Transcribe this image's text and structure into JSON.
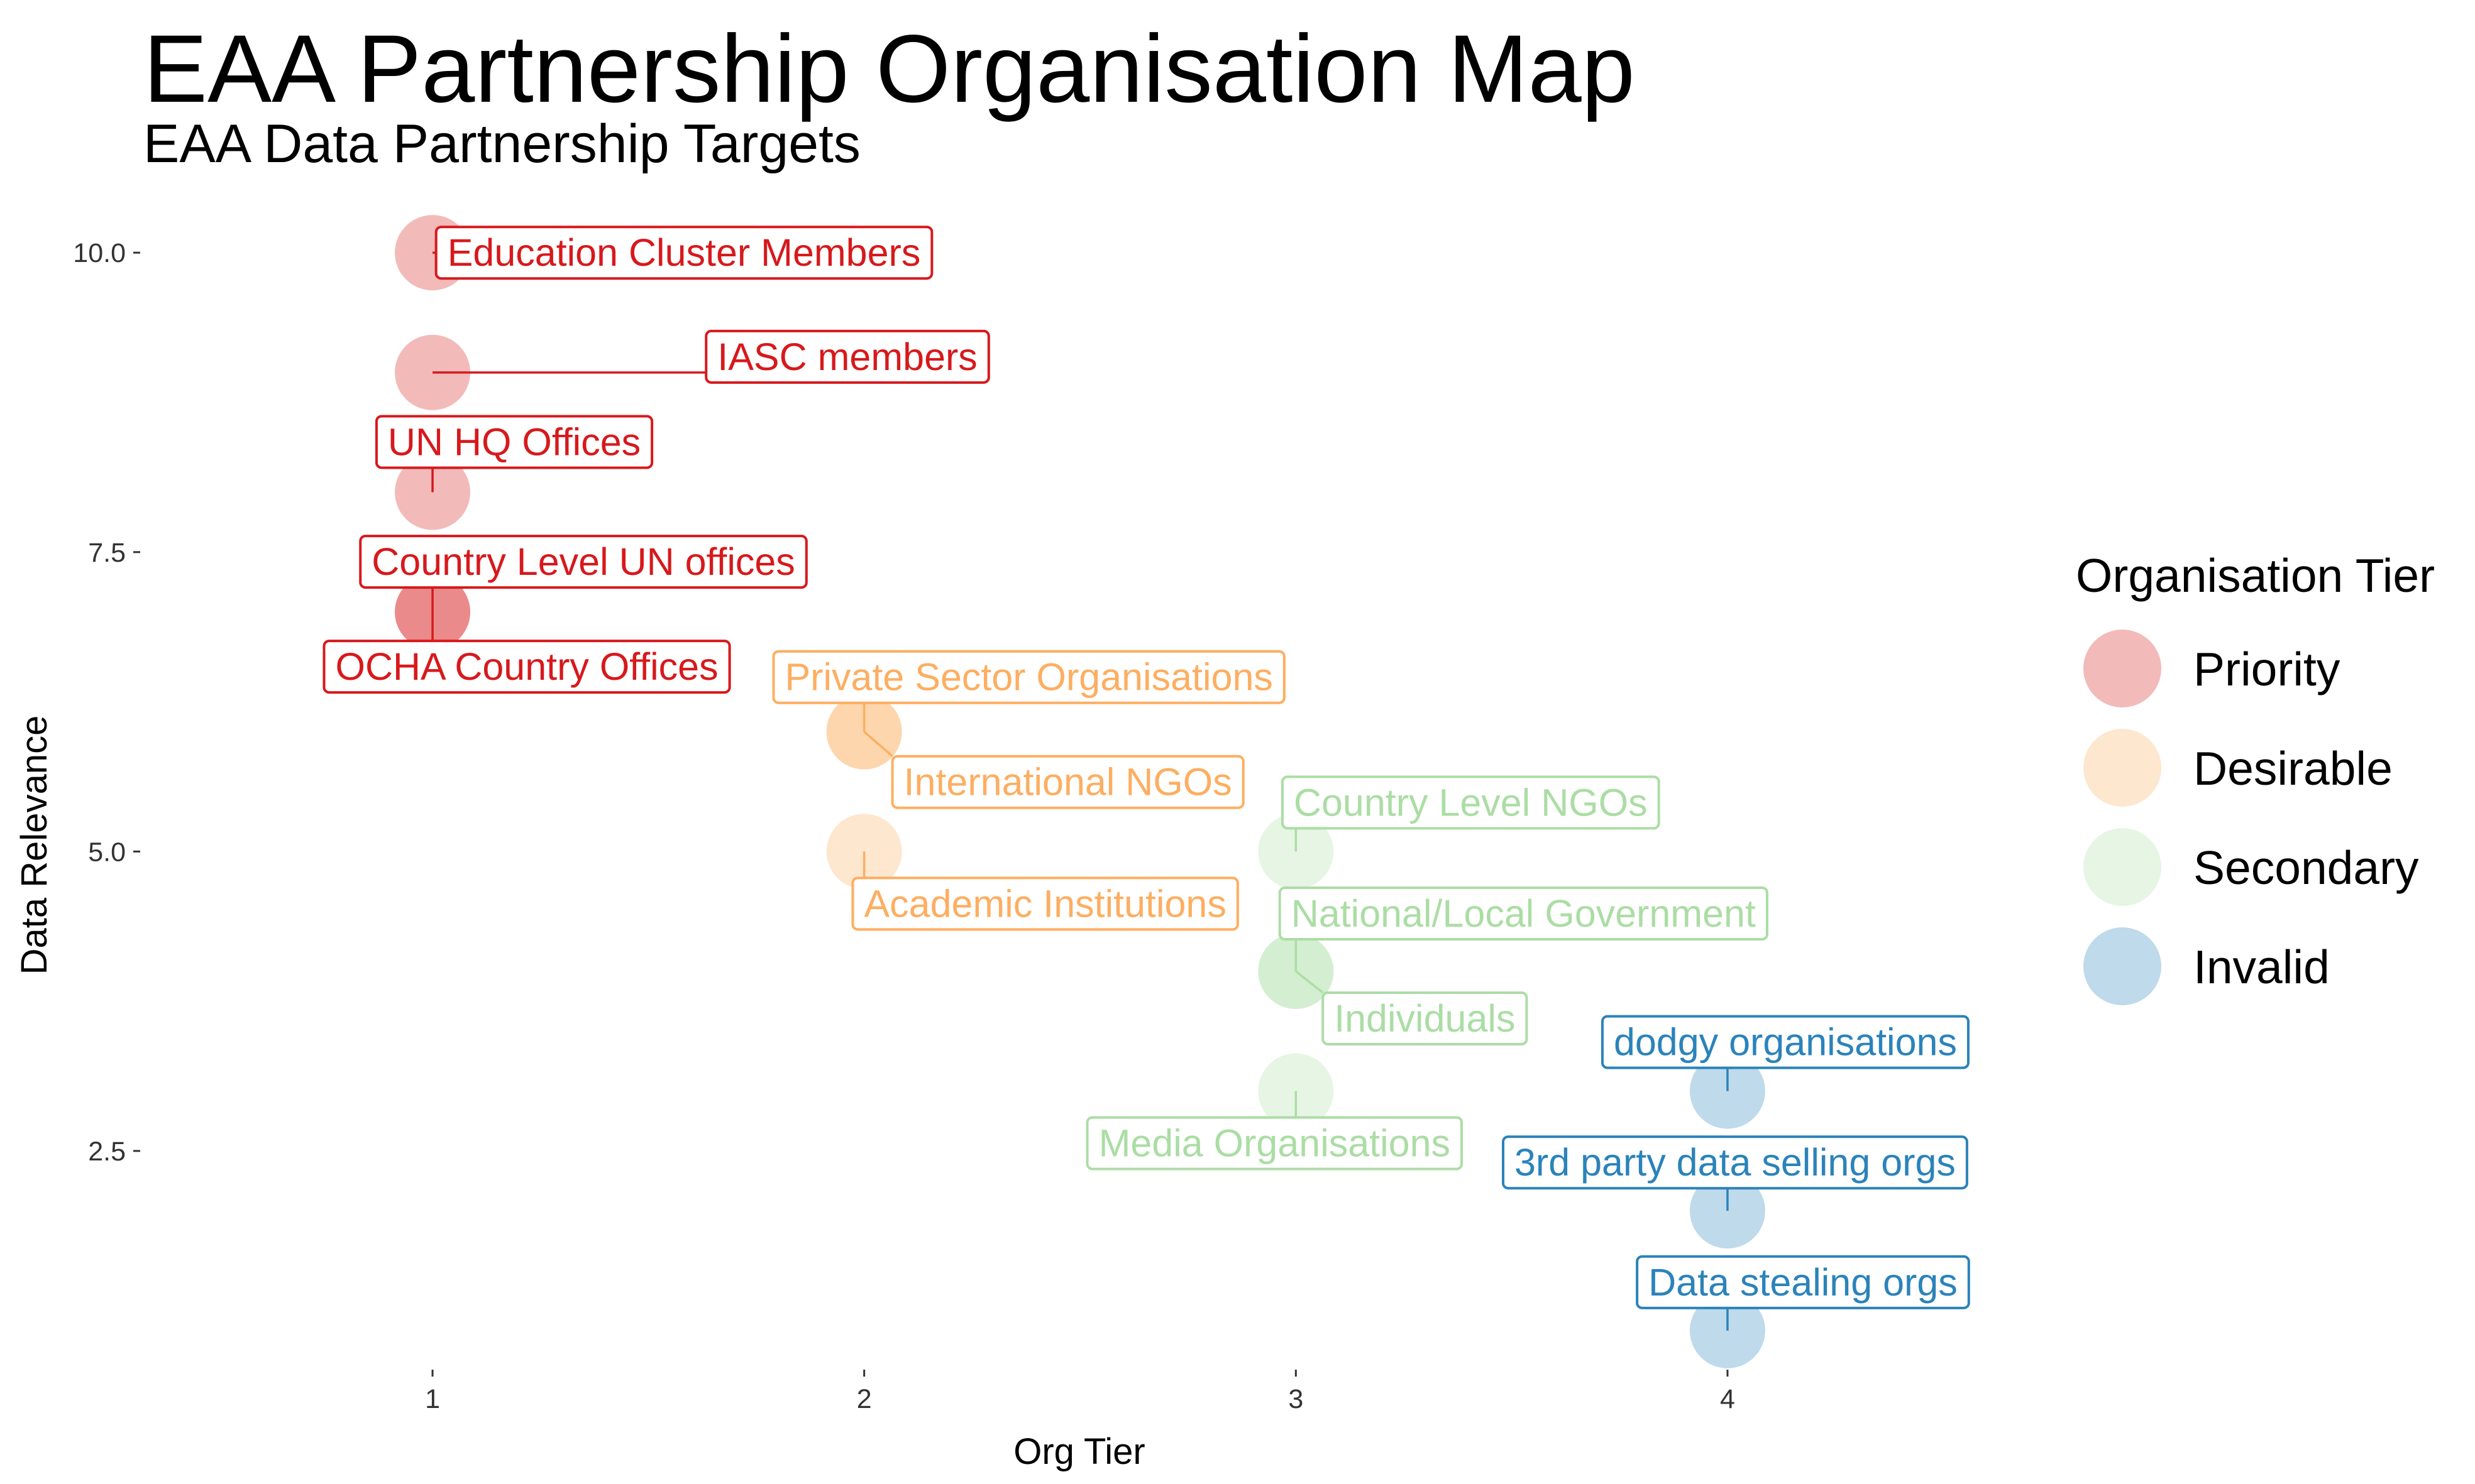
{
  "title": "EAA Partnership Organisation Map",
  "subtitle": "EAA Data Partnership Targets",
  "chart_data": {
    "type": "scatter",
    "title": "EAA Partnership Organisation Map",
    "subtitle": "EAA Data Partnership Targets",
    "xlabel": "Org Tier",
    "ylabel": "Data Relevance",
    "xlim": [
      0.33,
      4.67
    ],
    "ylim": [
      0.7,
      10.3
    ],
    "x_ticks": [
      1,
      2,
      3,
      4
    ],
    "x_tick_labels": [
      "1",
      "2",
      "3",
      "4"
    ],
    "y_ticks": [
      2.5,
      5.0,
      7.5,
      10.0
    ],
    "y_tick_labels": [
      "2.5",
      "5.0",
      "7.5",
      "10.0"
    ],
    "grid": false,
    "legend": {
      "title": "Organisation Tier",
      "position": "right",
      "entries": [
        "Priority",
        "Desirable",
        "Secondary",
        "Invalid"
      ]
    },
    "series": [
      {
        "name": "Priority",
        "color": "#d7191c",
        "points": [
          {
            "x": 1,
            "y": 10,
            "label": "Education Cluster Members"
          },
          {
            "x": 1,
            "y": 9,
            "label": "IASC members"
          },
          {
            "x": 1,
            "y": 8,
            "label": "UN HQ Offices"
          },
          {
            "x": 1,
            "y": 7,
            "label": "Country Level UN offices"
          },
          {
            "x": 1,
            "y": 7,
            "label": "OCHA Country Offices"
          }
        ]
      },
      {
        "name": "Desirable",
        "color": "#fdae61",
        "points": [
          {
            "x": 2,
            "y": 6,
            "label": "Private Sector Organisations"
          },
          {
            "x": 2,
            "y": 6,
            "label": "International NGOs"
          },
          {
            "x": 2,
            "y": 5,
            "label": "Academic Institutions"
          }
        ]
      },
      {
        "name": "Secondary",
        "color": "#abdda4",
        "points": [
          {
            "x": 3,
            "y": 5,
            "label": "Country Level NGOs"
          },
          {
            "x": 3,
            "y": 4,
            "label": "National/Local Government"
          },
          {
            "x": 3,
            "y": 4,
            "label": "Individuals"
          },
          {
            "x": 3,
            "y": 3,
            "label": "Media Organisations"
          }
        ]
      },
      {
        "name": "Invalid",
        "color": "#2b83ba",
        "points": [
          {
            "x": 4,
            "y": 3,
            "label": "dodgy organisations"
          },
          {
            "x": 4,
            "y": 2,
            "label": "3rd party data selling orgs"
          },
          {
            "x": 4,
            "y": 1,
            "label": "Data stealing orgs"
          }
        ]
      }
    ]
  },
  "colors": {
    "Priority": "#d7191c",
    "Desirable": "#fdae61",
    "Secondary": "#abdda4",
    "Invalid": "#2b83ba"
  }
}
